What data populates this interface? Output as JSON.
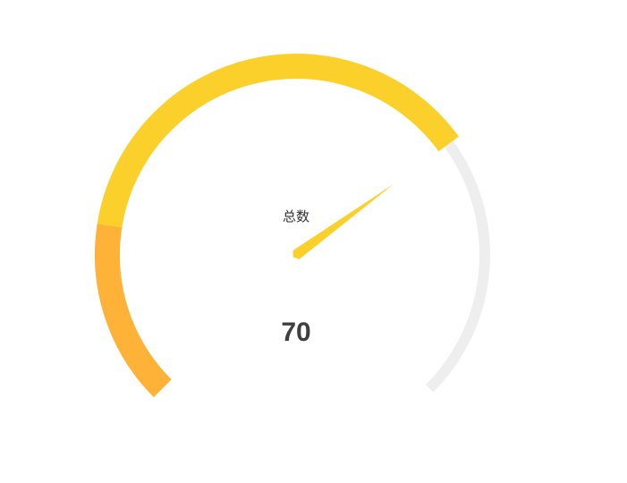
{
  "chart_data": {
    "type": "gauge",
    "series_name": "总数",
    "value": 70,
    "value_label": "70",
    "min": 0,
    "max": 100,
    "segments": [
      {
        "from": 0,
        "to": 20,
        "color": "#ffb238"
      },
      {
        "from": 20,
        "to": 70,
        "color": "#fcd02b"
      },
      {
        "from": 70,
        "to": 100,
        "color": "#eeeeee"
      }
    ],
    "pointer_color": "#fcd02b"
  }
}
